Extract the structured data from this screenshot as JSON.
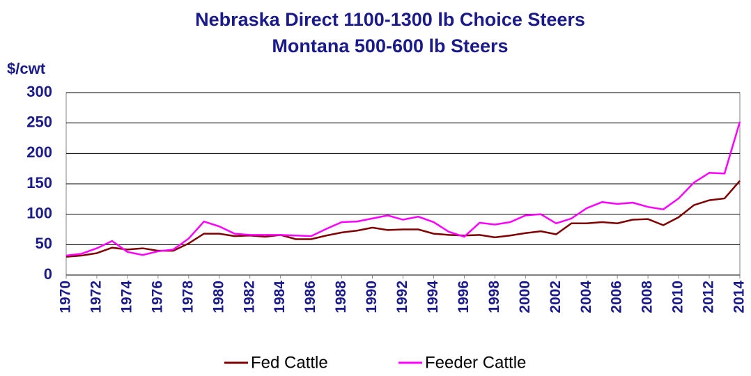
{
  "chart_data": {
    "type": "line",
    "title": "Nebraska Direct 1100-1300 lb Choice Steers",
    "subtitle": "Montana 500-600 lb Steers",
    "ylabel": "$/cwt",
    "x": [
      1970,
      1971,
      1972,
      1973,
      1974,
      1975,
      1976,
      1977,
      1978,
      1979,
      1980,
      1981,
      1982,
      1983,
      1984,
      1985,
      1986,
      1987,
      1988,
      1989,
      1990,
      1991,
      1992,
      1993,
      1994,
      1995,
      1996,
      1997,
      1998,
      1999,
      2000,
      2001,
      2002,
      2003,
      2004,
      2005,
      2006,
      2007,
      2008,
      2009,
      2010,
      2011,
      2012,
      2013,
      2014
    ],
    "series": [
      {
        "name": "Fed Cattle",
        "color": "#800000",
        "values": [
          30,
          32,
          36,
          45,
          42,
          44,
          40,
          40,
          52,
          68,
          68,
          64,
          65,
          63,
          66,
          59,
          59,
          65,
          70,
          73,
          78,
          74,
          75,
          75,
          68,
          66,
          65,
          66,
          62,
          65,
          69,
          72,
          67,
          85,
          85,
          87,
          85,
          91,
          92,
          82,
          95,
          115,
          123,
          126,
          155
        ]
      },
      {
        "name": "Feeder Cattle",
        "color": "#ff00ff",
        "values": [
          32,
          35,
          44,
          56,
          38,
          33,
          39,
          42,
          60,
          88,
          80,
          68,
          66,
          66,
          66,
          65,
          64,
          76,
          87,
          88,
          93,
          98,
          91,
          96,
          87,
          71,
          63,
          86,
          83,
          87,
          98,
          100,
          85,
          93,
          110,
          120,
          117,
          119,
          112,
          108,
          126,
          152,
          168,
          167,
          252
        ]
      }
    ],
    "xlim": [
      1970,
      2014
    ],
    "xticks": [
      1970,
      1972,
      1974,
      1976,
      1978,
      1980,
      1982,
      1984,
      1986,
      1988,
      1990,
      1992,
      1994,
      1996,
      1998,
      2000,
      2002,
      2004,
      2006,
      2008,
      2010,
      2012,
      2014
    ],
    "ylim": [
      0,
      300
    ],
    "yticks": [
      0,
      50,
      100,
      150,
      200,
      250,
      300
    ],
    "grid": true,
    "legend": "bottom"
  }
}
